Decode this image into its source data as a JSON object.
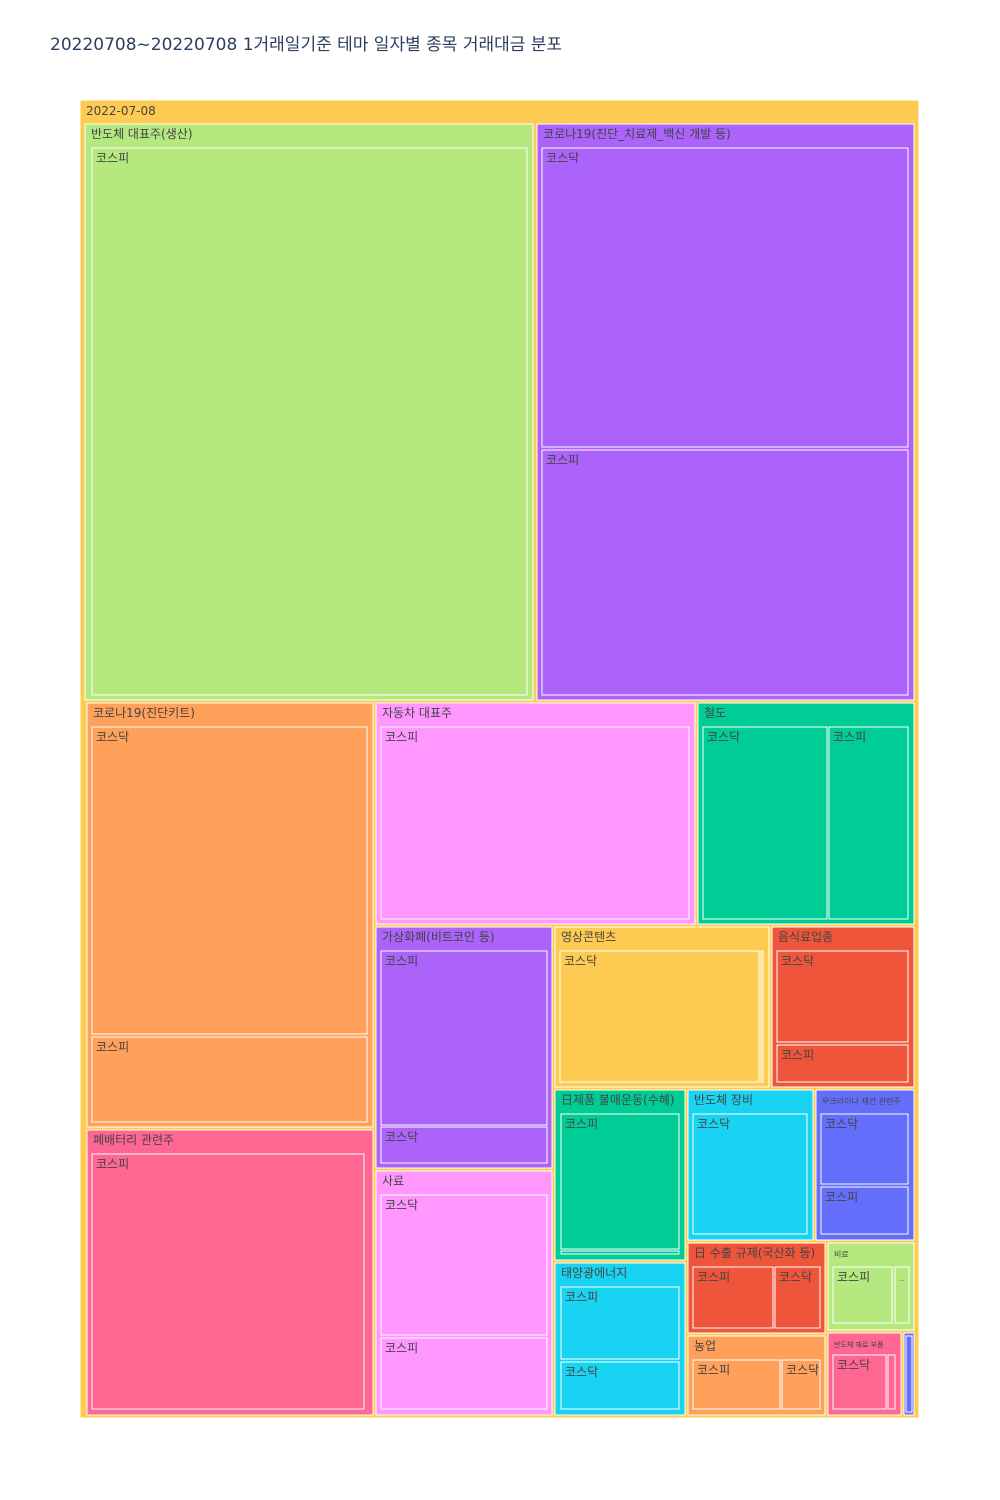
{
  "chart_data": {
    "type": "treemap",
    "title": "20220708~20220708 1거래일기준 테마 일자별 종목 거래대금 분포",
    "root": {
      "label": "2022-07-08",
      "color": "#FECB52"
    },
    "themes": [
      {
        "label": "반도체 대표주(생산)",
        "color": "#B6E880",
        "children": [
          {
            "label": "코스피",
            "value": 100
          }
        ]
      },
      {
        "label": "코로나19(진단_치료제_백신 개발 등)",
        "color": "#AB63FA",
        "children": [
          {
            "label": "코스닥",
            "value": 54
          },
          {
            "label": "코스피",
            "value": 44
          }
        ]
      },
      {
        "label": "코로나19(진단키트)",
        "color": "#FFA15A",
        "children": [
          {
            "label": "코스닥",
            "value": 44
          },
          {
            "label": "코스피",
            "value": 13
          }
        ]
      },
      {
        "label": "자동차 대표주",
        "color": "#FF97FF",
        "children": [
          {
            "label": "코스피",
            "value": 30
          }
        ]
      },
      {
        "label": "철도",
        "color": "#00CC96",
        "children": [
          {
            "label": "코스닥",
            "value": 12
          },
          {
            "label": "코스피",
            "value": 8
          }
        ]
      },
      {
        "label": "폐배터리 관련주",
        "color": "#FF6692",
        "children": [
          {
            "label": "코스피",
            "value": 38
          }
        ]
      },
      {
        "label": "가상화폐(비트코인 등)",
        "color": "#AB63FA",
        "children": [
          {
            "label": "코스피",
            "value": 14
          },
          {
            "label": "코스닥",
            "value": 3
          }
        ]
      },
      {
        "label": "사료",
        "color": "#FF97FF",
        "children": [
          {
            "label": "코스닥",
            "value": 10
          },
          {
            "label": "코스피",
            "value": 5
          }
        ]
      },
      {
        "label": "영상콘텐츠",
        "color": "#FECB52",
        "children": [
          {
            "label": "코스닥",
            "value": 12
          },
          {
            "label": "",
            "value": 0.3
          }
        ]
      },
      {
        "label": "음식료업종",
        "color": "#EF553B",
        "children": [
          {
            "label": "코스닥",
            "value": 6
          },
          {
            "label": "코스피",
            "value": 2
          }
        ]
      },
      {
        "label": "日제품 불매운동(수혜)",
        "color": "#00CC96",
        "children": [
          {
            "label": "코스피",
            "value": 8
          },
          {
            "label": "",
            "value": 0.3
          }
        ]
      },
      {
        "label": "반도체 장비",
        "color": "#19D3F3",
        "children": [
          {
            "label": "코스닥",
            "value": 7
          }
        ]
      },
      {
        "label": "우크라이나 재건 관련주",
        "color": "#636EFA",
        "children": [
          {
            "label": "코스닥",
            "value": 4
          },
          {
            "label": "코스피",
            "value": 2.5
          }
        ]
      },
      {
        "label": "태양광에너지",
        "color": "#19D3F3",
        "children": [
          {
            "label": "코스피",
            "value": 4
          },
          {
            "label": "코스닥",
            "value": 2.3
          }
        ]
      },
      {
        "label": "日 수출 규제(국산화 등)",
        "color": "#EF553B",
        "children": [
          {
            "label": "코스피",
            "value": 3.5
          },
          {
            "label": "코스닥",
            "value": 2
          }
        ]
      },
      {
        "label": "비료",
        "color": "#B6E880",
        "children": [
          {
            "label": "코스피",
            "value": 3
          },
          {
            "label": "...",
            "value": 0.5
          }
        ]
      },
      {
        "label": "농업",
        "color": "#FFA15A",
        "children": [
          {
            "label": "코스피",
            "value": 2.8
          },
          {
            "label": "코스닥",
            "value": 1.2
          }
        ]
      },
      {
        "label": "반도체 재료 부품",
        "color": "#FF6692",
        "children": [
          {
            "label": "코스닥",
            "value": 2.3
          },
          {
            "label": "",
            "value": 0.2
          }
        ]
      },
      {
        "label": "",
        "color": "#636EFA",
        "children": [
          {
            "label": "",
            "value": 0.6
          }
        ]
      }
    ]
  }
}
